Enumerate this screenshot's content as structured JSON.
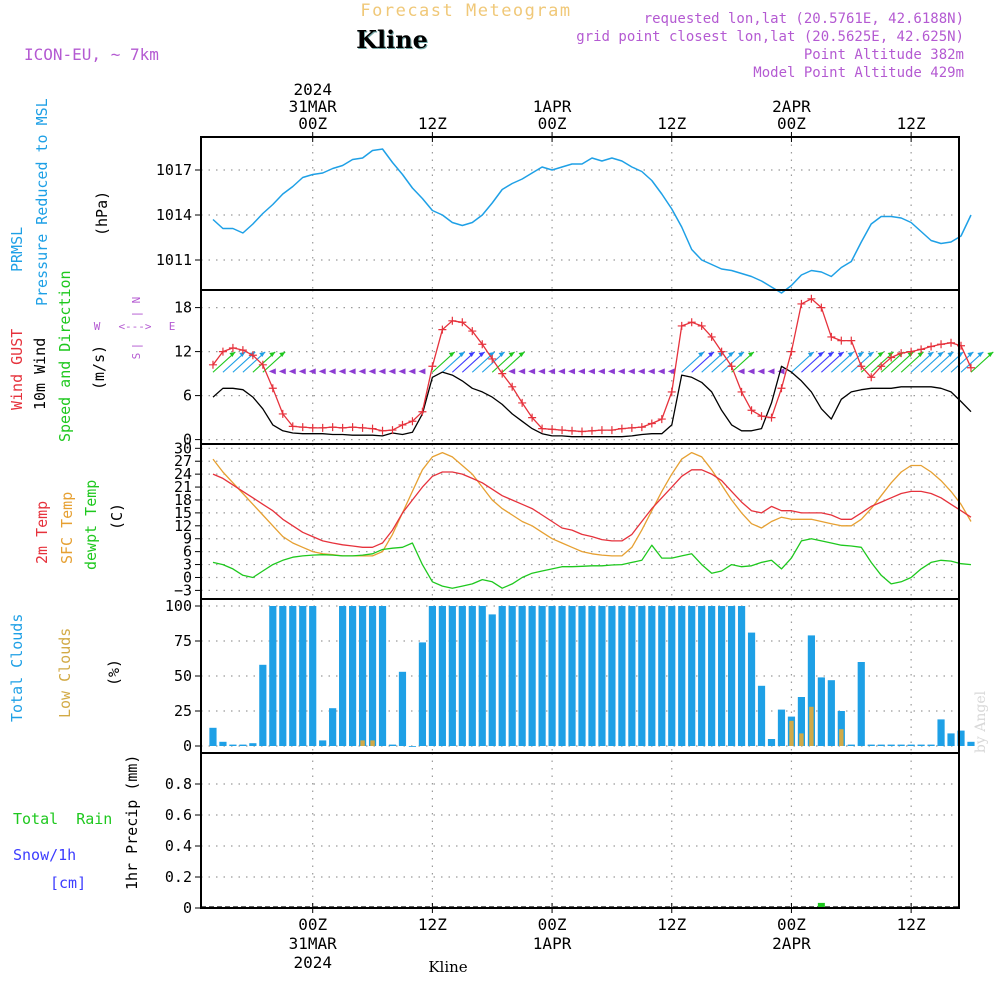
{
  "header": {
    "title": "Forecast Meteogram",
    "station": "Kline",
    "model": "ICON-EU, ~ 7km",
    "requested": "requested lon,lat (20.5761E, 42.6188N)",
    "grid": "grid point closest lon,lat (20.5625E, 42.625N)",
    "point_alt": "Point Altitude 382m",
    "model_alt": "Model Point Altitude 429m",
    "footer_station": "Kline",
    "credit": "by Angel"
  },
  "time_axis": {
    "top": [
      {
        "x": 10,
        "lines": [
          "2024",
          "31MAR",
          "00Z"
        ]
      },
      {
        "x": 22,
        "lines": [
          "12Z"
        ]
      },
      {
        "x": 34,
        "lines": [
          "1APR",
          "00Z"
        ]
      },
      {
        "x": 46,
        "lines": [
          "12Z"
        ]
      },
      {
        "x": 58,
        "lines": [
          "2APR",
          "00Z"
        ]
      },
      {
        "x": 70,
        "lines": [
          "12Z"
        ]
      }
    ],
    "bottom": [
      {
        "x": 10,
        "lines": [
          "00Z",
          "31MAR",
          "2024"
        ]
      },
      {
        "x": 22,
        "lines": [
          "12Z"
        ]
      },
      {
        "x": 34,
        "lines": [
          "00Z",
          "1APR"
        ]
      },
      {
        "x": 46,
        "lines": [
          "12Z"
        ]
      },
      {
        "x": 58,
        "lines": [
          "00Z",
          "2APR"
        ]
      },
      {
        "x": 70,
        "lines": [
          "12Z"
        ]
      }
    ]
  },
  "panel_labels": {
    "pressure": [
      "PRMSL",
      "Pressure Reduced to MSL"
    ],
    "pressure_unit": "(hPa)",
    "wind": [
      "Wind GUST",
      "10m Wind",
      "Speed and Direction"
    ],
    "wind_unit": "(m/s)",
    "compass": {
      "n": "N",
      "s": "S",
      "w": "W",
      "e": "E",
      "h": "<--->",
      "v": "|"
    },
    "temp": [
      "2m Temp",
      "SFC Temp",
      "dewpt Temp"
    ],
    "temp_unit": "(C)",
    "clouds": [
      "Total Clouds",
      "Low Clouds"
    ],
    "clouds_unit": "(%)",
    "precip": [
      "Total  Rain",
      "Snow/1h",
      "[cm]"
    ],
    "precip_unit": "1hr Precip (mm)"
  },
  "colors": {
    "pressure": "#1ea0e6",
    "gust": "#e6323c",
    "wind": "#000000",
    "direction": "#8c3cd2",
    "t2m": "#e6323c",
    "sfc": "#e6a032",
    "dewpt": "#1ec81e",
    "total_clouds": "#1ea0e6",
    "low_clouds": "#d2aa46",
    "rain": "#1ec81e",
    "snow": "#3c3cff",
    "label_purple": "#b45ad2",
    "title": "#f0c878"
  },
  "chart_data": [
    {
      "type": "line",
      "title": "PRMSL Pressure Reduced to MSL",
      "ylabel": "hPa",
      "x_unit": "hours from 30MAR 14Z",
      "ylim": [
        1009.0,
        1019.2
      ],
      "yticks": [
        1011,
        1014,
        1017
      ],
      "x": [
        0,
        1,
        2,
        3,
        4,
        5,
        6,
        7,
        8,
        9,
        10,
        11,
        12,
        13,
        14,
        15,
        16,
        17,
        18,
        19,
        20,
        21,
        22,
        23,
        24,
        25,
        26,
        27,
        28,
        29,
        30,
        31,
        32,
        33,
        34,
        35,
        36,
        37,
        38,
        39,
        40,
        41,
        42,
        43,
        44,
        45,
        46,
        47,
        48,
        49,
        50,
        51,
        52,
        53,
        54,
        55,
        56,
        57,
        58,
        59,
        60,
        61,
        62,
        63,
        64,
        65,
        66,
        67,
        68,
        69,
        70,
        71,
        72,
        73,
        74,
        75,
        76
      ],
      "series": [
        {
          "name": "PRMSL",
          "values": [
            1013.7,
            1013.1,
            1013.1,
            1012.8,
            1013.4,
            1014.1,
            1014.7,
            1015.4,
            1015.9,
            1016.5,
            1016.7,
            1016.8,
            1017.1,
            1017.3,
            1017.7,
            1017.8,
            1018.3,
            1018.4,
            1017.5,
            1016.7,
            1015.8,
            1015.1,
            1014.3,
            1014.0,
            1013.5,
            1013.3,
            1013.5,
            1014.0,
            1014.8,
            1015.7,
            1016.1,
            1016.4,
            1016.8,
            1017.2,
            1017.0,
            1017.2,
            1017.4,
            1017.4,
            1017.8,
            1017.6,
            1017.8,
            1017.6,
            1017.2,
            1016.9,
            1016.3,
            1015.4,
            1014.4,
            1013.2,
            1011.7,
            1011.0,
            1010.7,
            1010.4,
            1010.3,
            1010.1,
            1009.9,
            1009.6,
            1009.2,
            1008.8,
            1009.3,
            1010.0,
            1010.3,
            1010.2,
            1009.9,
            1010.5,
            1010.9,
            1012.2,
            1013.4,
            1013.9,
            1013.9,
            1013.8,
            1013.5,
            1012.9,
            1012.3,
            1012.1,
            1012.2,
            1012.6,
            1014.0
          ]
        }
      ]
    },
    {
      "type": "line",
      "title": "Wind GUST / 10m Wind Speed and Direction",
      "ylabel": "m/s",
      "ylim": [
        -0.6,
        20.4
      ],
      "yticks": [
        0,
        6,
        12,
        18
      ],
      "x": [
        0,
        1,
        2,
        3,
        4,
        5,
        6,
        7,
        8,
        9,
        10,
        11,
        12,
        13,
        14,
        15,
        16,
        17,
        18,
        19,
        20,
        21,
        22,
        23,
        24,
        25,
        26,
        27,
        28,
        29,
        30,
        31,
        32,
        33,
        34,
        35,
        36,
        37,
        38,
        39,
        40,
        41,
        42,
        43,
        44,
        45,
        46,
        47,
        48,
        49,
        50,
        51,
        52,
        53,
        54,
        55,
        56,
        57,
        58,
        59,
        60,
        61,
        62,
        63,
        64,
        65,
        66,
        67,
        68,
        69,
        70,
        71,
        72,
        73,
        74,
        75,
        76
      ],
      "series": [
        {
          "name": "Wind GUST",
          "values": [
            10.2,
            12.0,
            12.5,
            12.2,
            11.5,
            10.2,
            7.0,
            3.5,
            1.8,
            1.7,
            1.6,
            1.6,
            1.7,
            1.6,
            1.7,
            1.6,
            1.5,
            1.2,
            1.3,
            2.0,
            2.5,
            3.8,
            10.0,
            15.0,
            16.2,
            16.0,
            14.8,
            13.0,
            11.0,
            9.0,
            7.2,
            5.0,
            3.0,
            1.5,
            1.4,
            1.3,
            1.2,
            1.1,
            1.2,
            1.3,
            1.3,
            1.5,
            1.6,
            1.7,
            2.2,
            2.8,
            6.5,
            15.5,
            16.0,
            15.5,
            14.0,
            12.0,
            10.0,
            6.5,
            4.0,
            3.2,
            3.0,
            7.0,
            12.0,
            18.5,
            19.2,
            18.0,
            14.0,
            13.5,
            13.5,
            10.0,
            8.5,
            10.0,
            11.2,
            11.8,
            12.0,
            12.3,
            12.7,
            13.0,
            13.2,
            12.8,
            9.8
          ]
        },
        {
          "name": "10m Wind",
          "values": [
            5.8,
            7.0,
            7.0,
            6.8,
            5.8,
            4.2,
            2.0,
            1.2,
            0.9,
            0.8,
            0.8,
            0.8,
            0.7,
            0.7,
            0.6,
            0.6,
            0.6,
            0.5,
            0.9,
            0.7,
            1.0,
            3.5,
            8.5,
            9.2,
            8.8,
            8.0,
            7.0,
            6.5,
            5.8,
            4.8,
            3.5,
            2.5,
            1.5,
            0.8,
            0.5,
            0.5,
            0.4,
            0.4,
            0.4,
            0.4,
            0.4,
            0.4,
            0.5,
            0.7,
            0.8,
            0.8,
            2.0,
            8.8,
            8.5,
            7.8,
            6.5,
            4.0,
            2.0,
            1.2,
            1.2,
            1.5,
            5.0,
            10.0,
            9.2,
            8.0,
            6.5,
            4.2,
            2.8,
            5.5,
            6.5,
            6.8,
            7.0,
            7.0,
            7.0,
            7.2,
            7.2,
            7.2,
            7.2,
            7.0,
            6.5,
            5.2,
            3.8
          ]
        }
      ]
    },
    {
      "type": "line",
      "title": "2m Temp / SFC Temp / dewpt Temp",
      "ylabel": "C",
      "ylim": [
        -5,
        31
      ],
      "yticks": [
        -3,
        0,
        3,
        6,
        9,
        12,
        15,
        18,
        21,
        24,
        27,
        30
      ],
      "x": [
        0,
        1,
        2,
        3,
        4,
        5,
        6,
        7,
        8,
        9,
        10,
        11,
        12,
        13,
        14,
        15,
        16,
        17,
        18,
        19,
        20,
        21,
        22,
        23,
        24,
        25,
        26,
        27,
        28,
        29,
        30,
        31,
        32,
        33,
        34,
        35,
        36,
        37,
        38,
        39,
        40,
        41,
        42,
        43,
        44,
        45,
        46,
        47,
        48,
        49,
        50,
        51,
        52,
        53,
        54,
        55,
        56,
        57,
        58,
        59,
        60,
        61,
        62,
        63,
        64,
        65,
        66,
        67,
        68,
        69,
        70,
        71,
        72,
        73,
        74,
        75,
        76
      ],
      "series": [
        {
          "name": "2m Temp",
          "values": [
            24.0,
            23.0,
            21.5,
            20.0,
            18.5,
            17.0,
            15.5,
            13.5,
            12.0,
            10.5,
            9.5,
            8.5,
            8.0,
            7.6,
            7.3,
            7.0,
            7.0,
            8.0,
            11.0,
            15.0,
            18.0,
            21.0,
            23.5,
            24.5,
            24.5,
            24.0,
            23.0,
            22.0,
            20.5,
            19.0,
            18.0,
            17.0,
            16.0,
            14.5,
            13.0,
            11.5,
            11.0,
            10.0,
            9.5,
            8.8,
            8.5,
            8.5,
            10.0,
            13.0,
            16.0,
            18.5,
            21.0,
            23.5,
            25.0,
            25.0,
            24.0,
            22.5,
            20.0,
            17.5,
            15.5,
            15.0,
            16.5,
            15.5,
            15.5,
            15.0,
            15.0,
            15.0,
            14.5,
            13.5,
            13.5,
            15.0,
            16.5,
            17.5,
            18.5,
            19.5,
            20.0,
            20.0,
            19.5,
            18.5,
            17.0,
            15.5,
            14.0
          ]
        },
        {
          "name": "SFC Temp",
          "values": [
            27.5,
            24.5,
            22.0,
            19.5,
            17.0,
            14.5,
            12.0,
            9.5,
            8.0,
            7.0,
            6.0,
            5.5,
            5.3,
            5.0,
            5.0,
            5.0,
            5.0,
            6.0,
            10.0,
            15.0,
            20.0,
            25.0,
            28.0,
            29.0,
            28.0,
            26.0,
            24.0,
            21.0,
            18.0,
            16.0,
            14.5,
            13.0,
            12.0,
            10.5,
            9.0,
            8.0,
            7.0,
            6.0,
            5.5,
            5.2,
            5.0,
            5.0,
            7.0,
            11.0,
            15.5,
            20.0,
            24.0,
            27.5,
            29.0,
            28.0,
            25.0,
            21.5,
            18.0,
            15.0,
            12.5,
            11.5,
            13.0,
            14.0,
            13.5,
            13.5,
            13.5,
            13.0,
            12.5,
            12.0,
            12.0,
            13.5,
            16.0,
            19.0,
            22.0,
            24.5,
            26.0,
            26.0,
            24.5,
            22.5,
            20.0,
            17.0,
            13.0
          ]
        },
        {
          "name": "dewpt Temp",
          "values": [
            3.5,
            3.0,
            2.0,
            0.5,
            0.0,
            1.5,
            3.0,
            4.0,
            4.7,
            5.0,
            5.2,
            5.3,
            5.2,
            5.0,
            5.0,
            5.2,
            5.5,
            6.5,
            6.8,
            7.0,
            8.0,
            3.0,
            -1.0,
            -2.0,
            -2.5,
            -2.0,
            -1.5,
            -0.5,
            -1.0,
            -2.5,
            -1.5,
            0.0,
            1.0,
            1.5,
            2.0,
            2.5,
            2.5,
            2.6,
            2.7,
            2.7,
            2.9,
            3.0,
            3.5,
            4.0,
            7.5,
            4.5,
            4.5,
            5.0,
            5.5,
            3.0,
            1.0,
            1.5,
            3.0,
            2.5,
            2.7,
            3.5,
            4.0,
            2.0,
            4.5,
            8.5,
            9.0,
            8.5,
            8.0,
            7.5,
            7.3,
            7.0,
            3.5,
            0.5,
            -1.5,
            -1.0,
            0.0,
            2.0,
            3.5,
            4.0,
            3.8,
            3.2,
            3.0
          ]
        }
      ]
    },
    {
      "type": "bar",
      "title": "Total Clouds / Low Clouds",
      "ylabel": "%",
      "ylim": [
        -5,
        105
      ],
      "yticks": [
        0,
        25,
        50,
        75,
        100
      ],
      "x": [
        0,
        1,
        2,
        3,
        4,
        5,
        6,
        7,
        8,
        9,
        10,
        11,
        12,
        13,
        14,
        15,
        16,
        17,
        18,
        19,
        20,
        21,
        22,
        23,
        24,
        25,
        26,
        27,
        28,
        29,
        30,
        31,
        32,
        33,
        34,
        35,
        36,
        37,
        38,
        39,
        40,
        41,
        42,
        43,
        44,
        45,
        46,
        47,
        48,
        49,
        50,
        51,
        52,
        53,
        54,
        55,
        56,
        57,
        58,
        59,
        60,
        61,
        62,
        63,
        64,
        65,
        66,
        67,
        68,
        69,
        70,
        71,
        72,
        73,
        74,
        75,
        76
      ],
      "series": [
        {
          "name": "Total Clouds",
          "values": [
            13,
            3,
            1,
            1,
            2,
            58,
            100,
            100,
            100,
            100,
            100,
            4,
            27,
            100,
            100,
            100,
            100,
            100,
            1,
            53,
            0,
            74,
            100,
            100,
            100,
            100,
            100,
            100,
            94,
            100,
            100,
            100,
            100,
            100,
            100,
            100,
            100,
            100,
            100,
            100,
            100,
            100,
            100,
            100,
            100,
            100,
            100,
            100,
            100,
            100,
            100,
            100,
            100,
            100,
            81,
            43,
            5,
            26,
            21,
            35,
            79,
            49,
            47,
            25,
            1,
            60,
            1,
            1,
            1,
            1,
            1,
            1,
            1,
            19,
            9,
            11,
            3
          ]
        },
        {
          "name": "Low Clouds",
          "values": [
            0,
            0,
            0,
            0,
            0,
            0,
            0,
            0,
            0,
            0,
            0,
            0,
            0,
            0,
            0,
            4,
            4,
            0,
            0,
            0,
            0,
            0,
            0,
            0,
            0,
            0,
            0,
            0,
            0,
            0,
            0,
            0,
            0,
            0,
            0,
            0,
            0,
            0,
            0,
            0,
            0,
            0,
            0,
            0,
            0,
            0,
            0,
            0,
            0,
            0,
            0,
            0,
            0,
            0,
            0,
            0,
            0,
            0,
            18,
            9,
            28,
            0,
            0,
            12,
            0,
            0,
            0,
            0,
            0,
            0,
            0,
            0,
            0,
            0,
            0,
            0,
            0
          ]
        }
      ]
    },
    {
      "type": "bar",
      "title": "1hr Precip",
      "ylabel": "mm",
      "ylim": [
        0,
        1.0
      ],
      "yticks": [
        0,
        0.2,
        0.4,
        0.6,
        0.8
      ],
      "ytick_labels": [
        "0",
        "0.2",
        "0.4",
        "0.6",
        "0.8"
      ],
      "x": [
        61
      ],
      "series": [
        {
          "name": "Total Rain",
          "values": [
            0.02
          ]
        },
        {
          "name": "Snow/1h",
          "values": [
            0
          ]
        }
      ]
    }
  ]
}
